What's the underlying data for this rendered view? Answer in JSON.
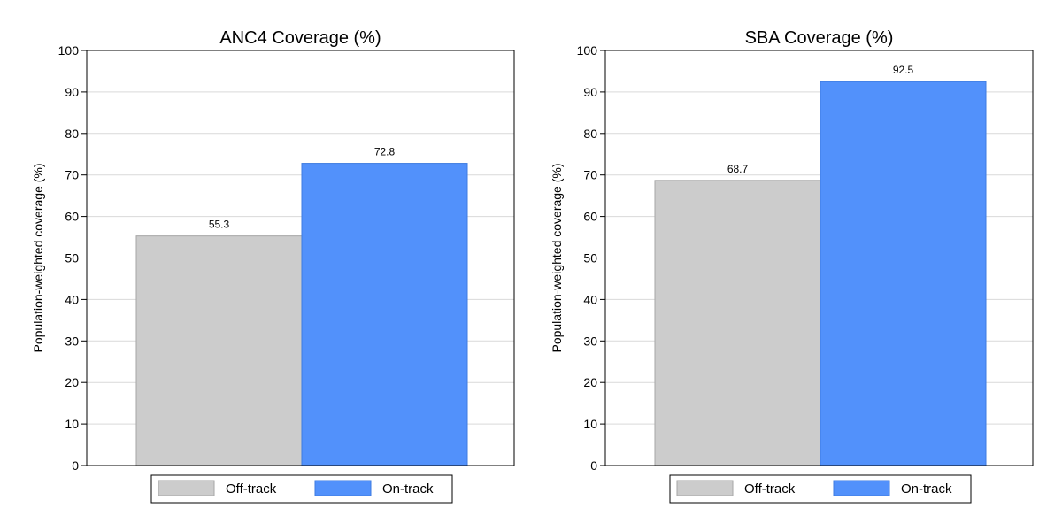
{
  "chart_data": [
    {
      "type": "bar",
      "title": "ANC4 Coverage (%)",
      "xlabel": "",
      "ylabel": "Population-weighted coverage (%)",
      "ylim": [
        0,
        100
      ],
      "yticks": [
        0,
        10,
        20,
        30,
        40,
        50,
        60,
        70,
        80,
        90,
        100
      ],
      "grid": true,
      "legend_position": "bottom",
      "series": [
        {
          "name": "Off-track",
          "color": "#cccccc",
          "values": [
            55.3
          ],
          "labels": [
            "55.3"
          ]
        },
        {
          "name": "On-track",
          "color": "#5291fb",
          "values": [
            72.8
          ],
          "labels": [
            "72.8"
          ]
        }
      ]
    },
    {
      "type": "bar",
      "title": "SBA Coverage (%)",
      "xlabel": "",
      "ylabel": "Population-weighted coverage (%)",
      "ylim": [
        0,
        100
      ],
      "yticks": [
        0,
        10,
        20,
        30,
        40,
        50,
        60,
        70,
        80,
        90,
        100
      ],
      "grid": true,
      "legend_position": "bottom",
      "series": [
        {
          "name": "Off-track",
          "color": "#cccccc",
          "values": [
            68.7
          ],
          "labels": [
            "68.7"
          ]
        },
        {
          "name": "On-track",
          "color": "#5291fb",
          "values": [
            92.5
          ],
          "labels": [
            "92.5"
          ]
        }
      ]
    }
  ]
}
